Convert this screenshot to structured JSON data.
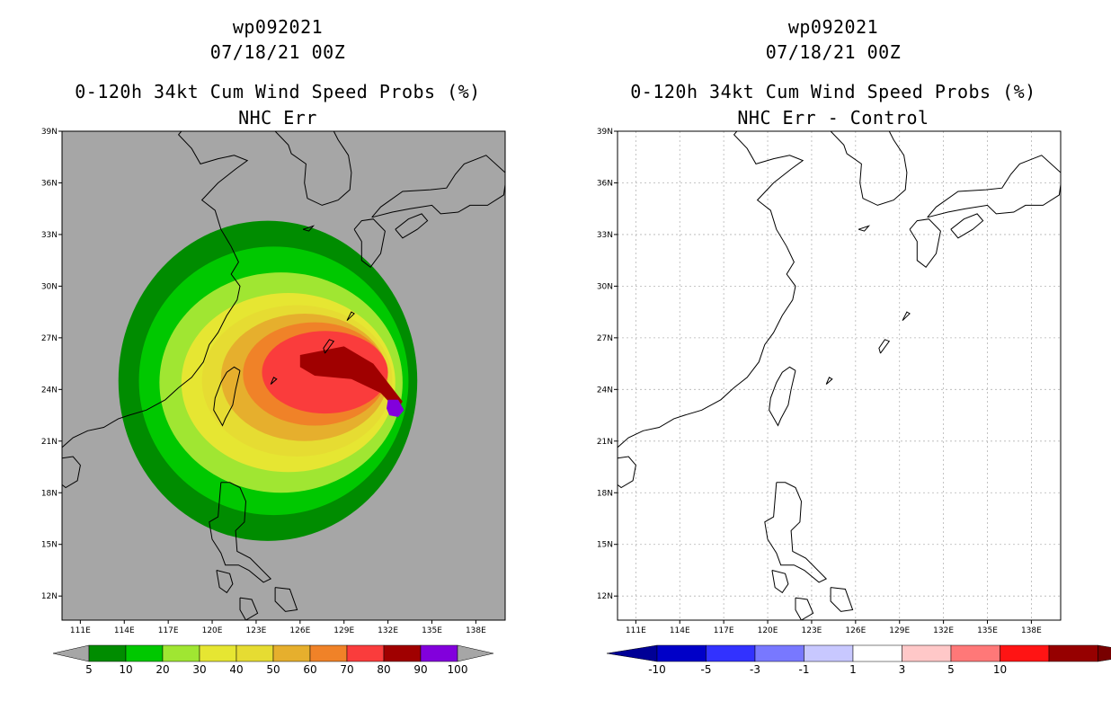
{
  "colors": {
    "ocean_left": "#a6a6a6",
    "ocean_right": "#ffffff",
    "prob_bins": [
      "#008c00",
      "#00c800",
      "#a0e632",
      "#e6e632",
      "#e6dc32",
      "#e6af2d",
      "#f08228",
      "#fa3c3c",
      "#a00000",
      "#8200dc"
    ],
    "diff_bins": [
      "#0000c8",
      "#3232ff",
      "#7878ff",
      "#c8c8ff",
      "#ffffff",
      "#ffc8c8",
      "#ff7878",
      "#ff1414",
      "#960000"
    ],
    "under_arrow_left": "#a6a6a6",
    "over_arrow_left": "#a6a6a6",
    "under_arrow_right": "#000096",
    "over_arrow_right": "#780000"
  },
  "panels": [
    {
      "title_lines": [
        "wp092021",
        "07/18/21 00Z",
        "0-120h 34kt Cum Wind Speed Probs (%)",
        "NHC Err"
      ],
      "lat_labels": [
        "39N",
        "36N",
        "33N",
        "30N",
        "27N",
        "24N",
        "21N",
        "18N",
        "15N",
        "12N"
      ],
      "lon_labels": [
        "111E",
        "114E",
        "117E",
        "120E",
        "123E",
        "126E",
        "129E",
        "132E",
        "135E",
        "138E"
      ],
      "colorbar_labels": [
        "5",
        "10",
        "20",
        "30",
        "40",
        "50",
        "60",
        "70",
        "80",
        "90",
        "100"
      ]
    },
    {
      "title_lines": [
        "wp092021",
        "07/18/21 00Z",
        "0-120h 34kt Cum Wind Speed Probs (%)",
        "NHC Err - Control"
      ],
      "lat_labels": [
        "39N",
        "36N",
        "33N",
        "30N",
        "27N",
        "24N",
        "21N",
        "18N",
        "15N",
        "12N"
      ],
      "lon_labels": [
        "111E",
        "114E",
        "117E",
        "120E",
        "123E",
        "126E",
        "129E",
        "132E",
        "135E",
        "138E"
      ],
      "colorbar_labels": [
        "-10",
        "-5",
        "-3",
        "-1",
        "1",
        "3",
        "5",
        "10"
      ]
    }
  ]
}
